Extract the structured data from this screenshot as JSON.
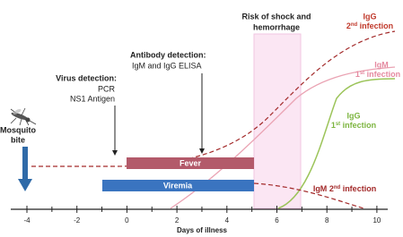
{
  "risk": [
    "Risk of shock and",
    "hemorrhage"
  ],
  "virus_detection": {
    "heading": "Virus detection:",
    "lines": [
      "PCR",
      "NS1 Antigen"
    ]
  },
  "antibody_detection": {
    "heading": "Antibody detection:",
    "lines": [
      "IgM and IgG ELISA"
    ]
  },
  "mosquito": [
    "Mosquito",
    "bite"
  ],
  "bars": {
    "fever": "Fever",
    "viremia": "Viremia"
  },
  "curves": {
    "igg_2nd": {
      "name": "IgG",
      "num": "2",
      "sup": "nd",
      "suffix": " infection"
    },
    "igm_1st": {
      "name": "IgM",
      "num": "1",
      "sup": "st",
      "suffix": " infection"
    },
    "igg_1st": {
      "name": "IgG",
      "num": "1",
      "sup": "st",
      "suffix": " infection"
    },
    "igm_2nd": {
      "name": "IgM",
      "num": "2",
      "sup": "nd",
      "suffix": " infection"
    }
  },
  "axis": {
    "label": "Days of illness",
    "ticks": [
      "-4",
      "-2",
      "0",
      "2",
      "4",
      "6",
      "8",
      "10"
    ]
  }
}
